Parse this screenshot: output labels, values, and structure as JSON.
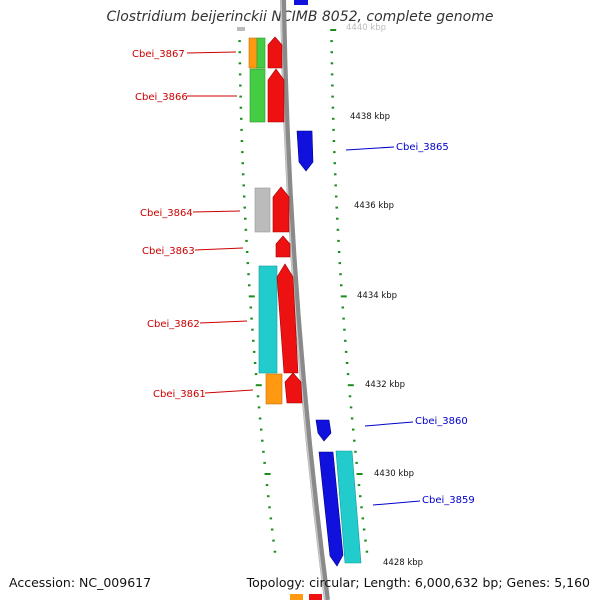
{
  "title": "Clostridium beijerinckii NCIMB 8052, complete genome",
  "accession": "Accession: NC_009617",
  "topology": "Topology: circular; Length: 6,000,632 bp; Genes: 5,160",
  "colors": {
    "backbone": "#8a8a8a",
    "tick": "#1c8c1c",
    "forward_label": "#cc0000",
    "reverse_label": "#0000cc",
    "red": "#ee1111",
    "blue": "#1111dd",
    "cyan": "#22cccc",
    "green": "#44cc44",
    "orange": "#ff9911",
    "gray": "#bbbbbb"
  },
  "scale_labels": [
    "4440 kbp",
    "4438 kbp",
    "4436 kbp",
    "4434 kbp",
    "4432 kbp",
    "4430 kbp",
    "4428 kbp"
  ],
  "gene_labels": [
    "Cbei_3867",
    "Cbei_3866",
    "Cbei_3865",
    "Cbei_3864",
    "Cbei_3863",
    "Cbei_3862",
    "Cbei_3861",
    "Cbei_3860",
    "Cbei_3859"
  ]
}
